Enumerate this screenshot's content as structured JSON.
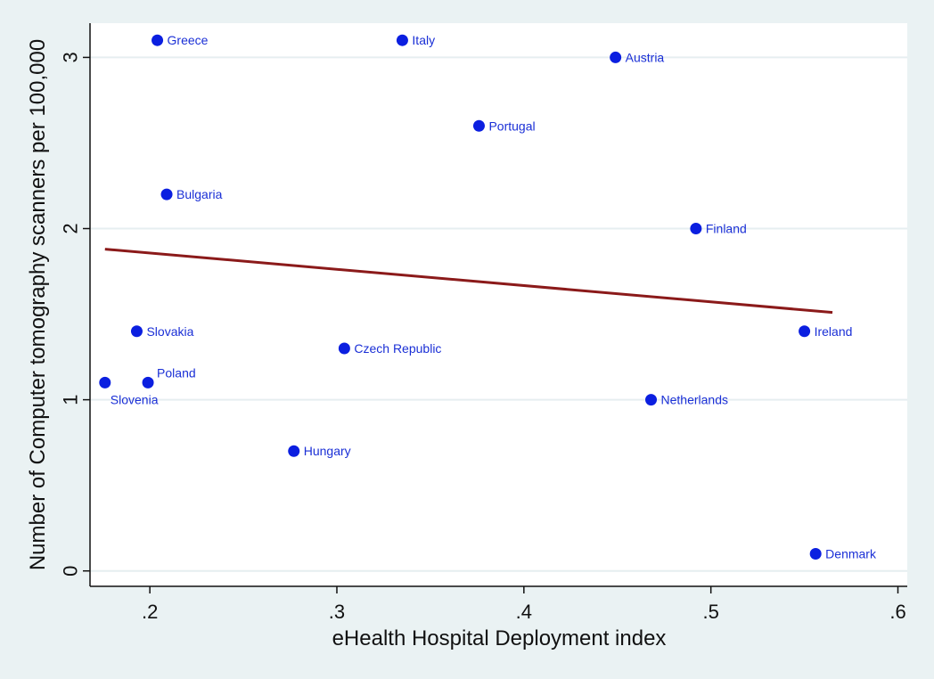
{
  "chart_data": {
    "type": "scatter",
    "xlabel": "eHealth Hospital Deployment index",
    "ylabel": "Number of Computer tomography scanners per 100,000",
    "xlim": [
      0.168,
      0.605
    ],
    "ylim": [
      -0.09,
      3.2
    ],
    "xticks": [
      0.2,
      0.3,
      0.4,
      0.5,
      0.6
    ],
    "xtick_labels": [
      ".2",
      ".3",
      ".4",
      ".5",
      ".6"
    ],
    "yticks": [
      0,
      1,
      2,
      3
    ],
    "ytick_labels": [
      "0",
      "1",
      "2",
      "3"
    ],
    "grid": "horizontal",
    "colors": {
      "point": "#0b1fe0",
      "label": "#1a2fd6",
      "fit_line": "#8b1a1a",
      "plot_bg": "#ffffff",
      "outer_bg": "#eaf2f3",
      "grid": "#e6eef0"
    },
    "points": [
      {
        "label": "Greece",
        "x": 0.204,
        "y": 3.1,
        "label_pos": "right"
      },
      {
        "label": "Italy",
        "x": 0.335,
        "y": 3.1,
        "label_pos": "right"
      },
      {
        "label": "Austria",
        "x": 0.449,
        "y": 3.0,
        "label_pos": "right"
      },
      {
        "label": "Portugal",
        "x": 0.376,
        "y": 2.6,
        "label_pos": "right"
      },
      {
        "label": "Bulgaria",
        "x": 0.209,
        "y": 2.2,
        "label_pos": "right"
      },
      {
        "label": "Finland",
        "x": 0.492,
        "y": 2.0,
        "label_pos": "right"
      },
      {
        "label": "Slovakia",
        "x": 0.193,
        "y": 1.4,
        "label_pos": "right"
      },
      {
        "label": "Czech Republic",
        "x": 0.304,
        "y": 1.3,
        "label_pos": "right"
      },
      {
        "label": "Ireland",
        "x": 0.55,
        "y": 1.4,
        "label_pos": "right"
      },
      {
        "label": "Poland",
        "x": 0.199,
        "y": 1.1,
        "label_pos": "upper-right"
      },
      {
        "label": "Slovenia",
        "x": 0.176,
        "y": 1.1,
        "label_pos": "lower-right"
      },
      {
        "label": "Netherlands",
        "x": 0.468,
        "y": 1.0,
        "label_pos": "right"
      },
      {
        "label": "Hungary",
        "x": 0.277,
        "y": 0.7,
        "label_pos": "right"
      },
      {
        "label": "Denmark",
        "x": 0.556,
        "y": 0.1,
        "label_pos": "right"
      }
    ],
    "fit_line": {
      "x": [
        0.176,
        0.565
      ],
      "y": [
        1.88,
        1.51
      ]
    }
  }
}
